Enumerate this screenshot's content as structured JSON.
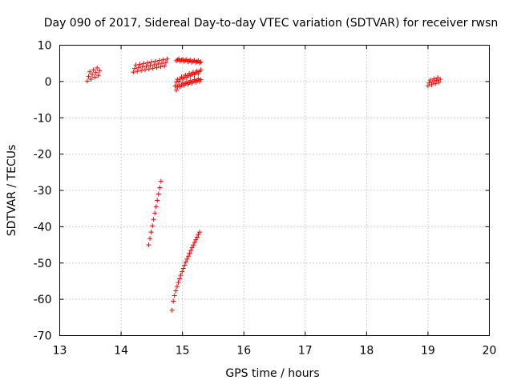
{
  "chart_data": {
    "type": "scatter",
    "title": "Day 090 of 2017, Sidereal Day-to-day VTEC variation (SDTVAR) for receiver rwsn",
    "xlabel": "GPS time / hours",
    "ylabel": "SDTVAR / TECUs",
    "xlim": [
      13,
      20
    ],
    "ylim": [
      -70,
      10
    ],
    "xticks": [
      13,
      14,
      15,
      16,
      17,
      18,
      19,
      20
    ],
    "yticks": [
      10,
      0,
      -10,
      -20,
      -30,
      -40,
      -50,
      -60,
      -70
    ],
    "grid": true,
    "marker": "plus",
    "color": "#ff0000",
    "segments": [
      {
        "x": [
          13.45,
          13.65
        ],
        "y0": 1.2,
        "y1": 3.0,
        "band": 2.2
      },
      {
        "x": [
          14.2,
          14.75
        ],
        "y0": 3.5,
        "y1": 5.3,
        "band": 1.8
      },
      {
        "x": [
          14.9,
          15.3
        ],
        "y0": 6.0,
        "y1": 5.4,
        "band": 0.6
      },
      {
        "x": [
          14.88,
          15.3
        ],
        "y0": -0.8,
        "y1": 2.8,
        "band": 0.8,
        "curve": 0.55
      },
      {
        "x": [
          14.9,
          15.3
        ],
        "y0": -2.0,
        "y1": 0.5,
        "band": 0.8,
        "curve": 0.55
      },
      {
        "x": [
          19.0,
          19.2
        ],
        "y0": -0.5,
        "y1": 0.6,
        "band": 1.4
      },
      {
        "x": [
          14.45,
          14.65
        ],
        "y0": -45.0,
        "y1": -27.5
      },
      {
        "x": [
          14.83,
          15.28
        ],
        "y0": -63.0,
        "y1": -41.5,
        "curve": 0.7
      }
    ]
  }
}
